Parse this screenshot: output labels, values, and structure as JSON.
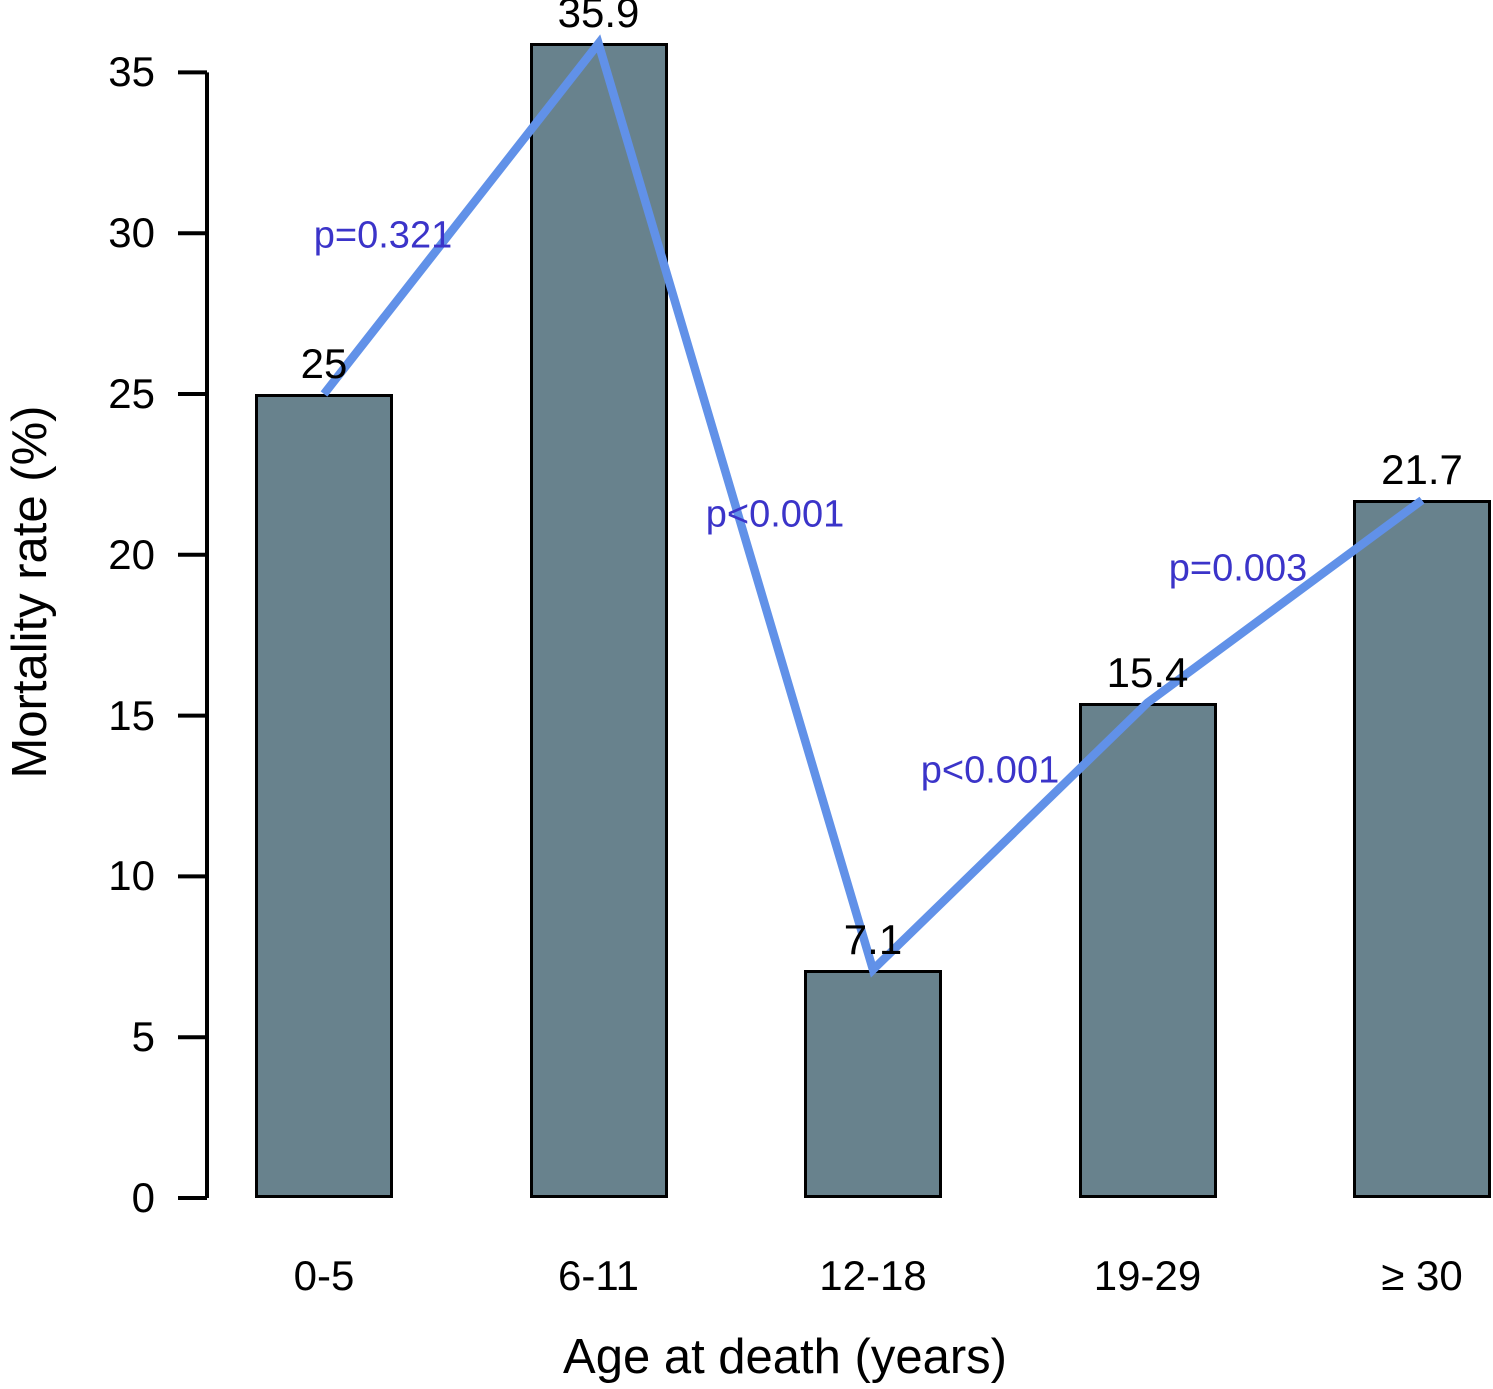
{
  "chart_data": {
    "type": "bar",
    "title": "",
    "xlabel": "Age at death (years)",
    "ylabel": "Mortality rate (%)",
    "categories": [
      "0-5",
      "6-11",
      "12-18",
      "19-29",
      "≥ 30"
    ],
    "values": [
      25,
      35.9,
      7.1,
      15.4,
      21.7
    ],
    "value_labels": [
      "25",
      "35.9",
      "7.1",
      "15.4",
      "21.7"
    ],
    "yticks": [
      0,
      5,
      10,
      15,
      20,
      25,
      30,
      35
    ],
    "ylim": [
      0,
      37
    ],
    "grid": false,
    "legend": "none",
    "overlay_line": {
      "description": "line connecting bar tops",
      "x": [
        "0-5",
        "6-11",
        "12-18",
        "19-29",
        "≥ 30"
      ],
      "y": [
        25,
        35.9,
        7.1,
        15.4,
        21.7
      ]
    },
    "annotations": [
      {
        "text": "p=0.321",
        "between": [
          "0-5",
          "6-11"
        ]
      },
      {
        "text": "p<0.001",
        "between": [
          "6-11",
          "12-18"
        ]
      },
      {
        "text": "p<0.001",
        "between": [
          "12-18",
          "19-29"
        ]
      },
      {
        "text": "p=0.003",
        "between": [
          "19-29",
          "≥ 30"
        ]
      }
    ],
    "colors": {
      "bar_fill": "#68828D",
      "bar_border": "#000000",
      "line": "#6191E8",
      "annotation_text": "#3B34C9",
      "axis": "#000000",
      "text": "#000000",
      "background": "#ffffff"
    }
  }
}
